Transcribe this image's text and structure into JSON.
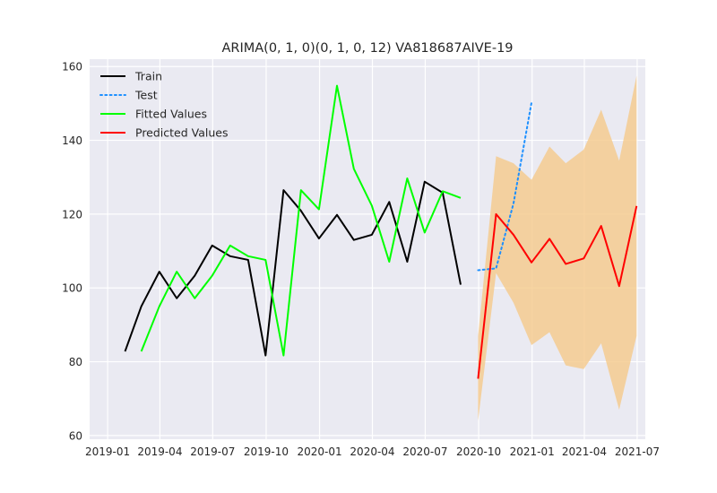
{
  "chart_data": {
    "type": "line",
    "title": "ARIMA(0, 1, 0)(0, 1, 0, 12) VA818687AIVE-19",
    "xlabel": "",
    "ylabel": "",
    "ylim": [
      59,
      162
    ],
    "yticks": [
      60,
      80,
      100,
      120,
      140,
      160
    ],
    "xlim": [
      "2018-12-01",
      "2021-07-15"
    ],
    "xticks": [
      {
        "date": "2019-01-01",
        "label": "2019-01"
      },
      {
        "date": "2019-04-01",
        "label": "2019-04"
      },
      {
        "date": "2019-07-01",
        "label": "2019-07"
      },
      {
        "date": "2019-10-01",
        "label": "2019-10"
      },
      {
        "date": "2020-01-01",
        "label": "2020-01"
      },
      {
        "date": "2020-04-01",
        "label": "2020-04"
      },
      {
        "date": "2020-07-01",
        "label": "2020-07"
      },
      {
        "date": "2020-10-01",
        "label": "2020-10"
      },
      {
        "date": "2021-01-01",
        "label": "2021-01"
      },
      {
        "date": "2021-04-01",
        "label": "2021-04"
      },
      {
        "date": "2021-07-01",
        "label": "2021-07"
      }
    ],
    "grid": true,
    "legend": "top-left",
    "series": [
      {
        "name": "Train",
        "color": "#000000",
        "style": "solid",
        "x": [
          "2019-01-31",
          "2019-02-28",
          "2019-03-31",
          "2019-04-30",
          "2019-05-31",
          "2019-06-30",
          "2019-07-31",
          "2019-08-31",
          "2019-09-30",
          "2019-10-31",
          "2019-11-30",
          "2019-12-31",
          "2020-01-31",
          "2020-02-29",
          "2020-03-31",
          "2020-04-30",
          "2020-05-31",
          "2020-06-30",
          "2020-07-31",
          "2020-08-31",
          "2020-09-30"
        ],
        "y": [
          82.8,
          95.0,
          104.4,
          97.2,
          103.3,
          111.5,
          108.6,
          107.6,
          81.7,
          126.5,
          120.9,
          113.4,
          119.8,
          113.0,
          114.4,
          123.3,
          107.1,
          128.8,
          125.8,
          100.9,
          null
        ]
      },
      {
        "name": "Test",
        "color": "#1e90ff",
        "style": "dotted",
        "x": [
          "2020-09-30",
          "2020-10-31",
          "2020-11-30",
          "2020-12-31"
        ],
        "y": [
          104.8,
          105.3,
          122.9,
          150.2
        ]
      },
      {
        "name": "Fitted Values",
        "color": "#00ff00",
        "style": "solid",
        "x": [
          "2019-02-28",
          "2019-03-31",
          "2019-04-30",
          "2019-05-31",
          "2019-06-30",
          "2019-07-31",
          "2019-08-31",
          "2019-09-30",
          "2019-10-31",
          "2019-11-30",
          "2019-12-31",
          "2020-01-31",
          "2020-02-29",
          "2020-03-31",
          "2020-04-30",
          "2020-05-31",
          "2020-06-30",
          "2020-07-31",
          "2020-08-31"
        ],
        "y": [
          82.8,
          95.0,
          104.4,
          97.2,
          103.3,
          111.5,
          108.6,
          107.6,
          81.7,
          126.5,
          121.3,
          154.8,
          132.3,
          122.3,
          107.1,
          129.7,
          115.0,
          126.2,
          124.4
        ]
      },
      {
        "name": "Predicted Values",
        "color": "#ff0000",
        "style": "solid",
        "x": [
          "2020-09-30",
          "2020-10-31",
          "2020-11-30",
          "2020-12-31",
          "2021-01-31",
          "2021-02-28",
          "2021-03-31",
          "2021-04-30",
          "2021-05-31",
          "2021-06-30"
        ],
        "y": [
          75.4,
          120.0,
          114.4,
          106.9,
          113.3,
          106.5,
          108.0,
          116.8,
          100.5,
          122.2
        ]
      }
    ],
    "confidence_band": {
      "color": "#f5c98a",
      "x": [
        "2020-09-30",
        "2020-10-31",
        "2020-11-30",
        "2020-12-31",
        "2021-01-31",
        "2021-02-28",
        "2021-03-31",
        "2021-04-30",
        "2021-05-31",
        "2021-06-30"
      ],
      "lower": [
        64.0,
        104.0,
        96.0,
        84.5,
        88.0,
        79.0,
        78.0,
        85.0,
        67.0,
        87.0
      ],
      "upper": [
        87.0,
        135.7,
        133.8,
        129.3,
        138.3,
        133.8,
        137.5,
        148.3,
        134.5,
        157.5
      ]
    }
  }
}
